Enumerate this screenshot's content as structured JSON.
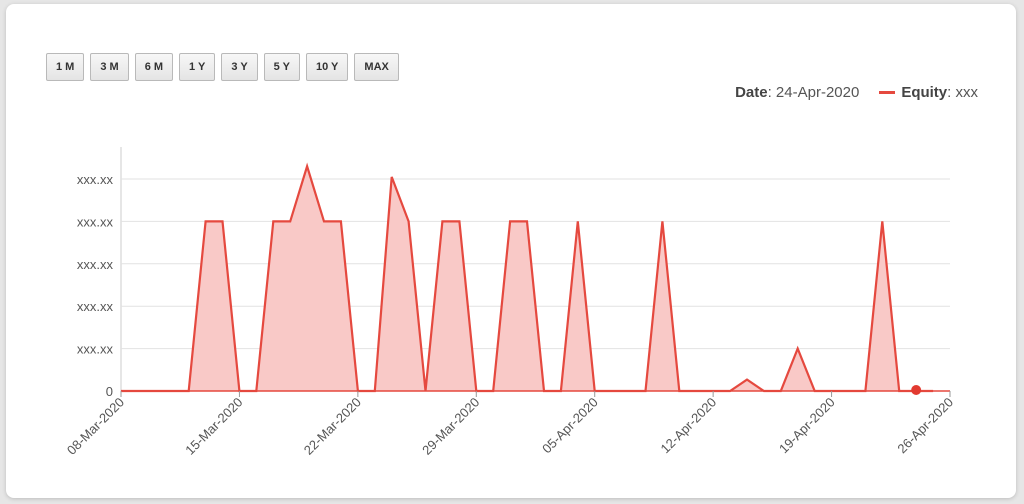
{
  "range_buttons": [
    {
      "label": "1 M"
    },
    {
      "label": "3 M"
    },
    {
      "label": "6 M"
    },
    {
      "label": "1 Y"
    },
    {
      "label": "3 Y"
    },
    {
      "label": "5 Y"
    },
    {
      "label": "10 Y"
    },
    {
      "label": "MAX"
    }
  ],
  "tooltip": {
    "date_label": "Date",
    "date_value": "24-Apr-2020",
    "series_label": "Equity",
    "series_value": "xxx"
  },
  "colors": {
    "line": "#e5493f",
    "fill": "#f9c9c7",
    "grid": "#e2e2e2",
    "text": "#555555"
  },
  "chart_data": {
    "type": "area",
    "title": "",
    "xlabel": "",
    "ylabel": "",
    "ylim": [
      0,
      5.4
    ],
    "y_ticks": [
      {
        "value": 0,
        "label": "0"
      },
      {
        "value": 1,
        "label": "xxx.xx"
      },
      {
        "value": 2,
        "label": "xxx.xx"
      },
      {
        "value": 3,
        "label": "xxx.xx"
      },
      {
        "value": 4,
        "label": "xxx.xx"
      },
      {
        "value": 5,
        "label": "xxx.xx"
      }
    ],
    "x_range": [
      "2020-03-08",
      "2020-04-26"
    ],
    "x_ticks": [
      {
        "date": "2020-03-08",
        "label": "08-Mar-2020"
      },
      {
        "date": "2020-03-15",
        "label": "15-Mar-2020"
      },
      {
        "date": "2020-03-22",
        "label": "22-Mar-2020"
      },
      {
        "date": "2020-03-29",
        "label": "29-Mar-2020"
      },
      {
        "date": "2020-04-05",
        "label": "05-Apr-2020"
      },
      {
        "date": "2020-04-12",
        "label": "12-Apr-2020"
      },
      {
        "date": "2020-04-19",
        "label": "19-Apr-2020"
      },
      {
        "date": "2020-04-26",
        "label": "26-Apr-2020"
      }
    ],
    "series": [
      {
        "points": [
          [
            "2020-03-08",
            0
          ],
          [
            "2020-03-09",
            0
          ],
          [
            "2020-03-10",
            0
          ],
          [
            "2020-03-11",
            0
          ],
          [
            "2020-03-12",
            0
          ],
          [
            "2020-03-13",
            4
          ],
          [
            "2020-03-14",
            4
          ],
          [
            "2020-03-15",
            0
          ],
          [
            "2020-03-16",
            0
          ],
          [
            "2020-03-17",
            4
          ],
          [
            "2020-03-18",
            4
          ],
          [
            "2020-03-19",
            5.3
          ],
          [
            "2020-03-20",
            4
          ],
          [
            "2020-03-21",
            4
          ],
          [
            "2020-03-22",
            0
          ],
          [
            "2020-03-23",
            0
          ],
          [
            "2020-03-24",
            5.05
          ],
          [
            "2020-03-25",
            4
          ],
          [
            "2020-03-26",
            0
          ],
          [
            "2020-03-27",
            4
          ],
          [
            "2020-03-28",
            4
          ],
          [
            "2020-03-29",
            0
          ],
          [
            "2020-03-30",
            0
          ],
          [
            "2020-03-31",
            4
          ],
          [
            "2020-04-01",
            4
          ],
          [
            "2020-04-02",
            0
          ],
          [
            "2020-04-03",
            0
          ],
          [
            "2020-04-04",
            4
          ],
          [
            "2020-04-05",
            0
          ],
          [
            "2020-04-06",
            0
          ],
          [
            "2020-04-07",
            0
          ],
          [
            "2020-04-08",
            0
          ],
          [
            "2020-04-09",
            4
          ],
          [
            "2020-04-10",
            0
          ],
          [
            "2020-04-11",
            0
          ],
          [
            "2020-04-12",
            0
          ],
          [
            "2020-04-13",
            0
          ],
          [
            "2020-04-14",
            0.27
          ],
          [
            "2020-04-15",
            0
          ],
          [
            "2020-04-16",
            0
          ],
          [
            "2020-04-17",
            1
          ],
          [
            "2020-04-18",
            0
          ],
          [
            "2020-04-19",
            0
          ],
          [
            "2020-04-20",
            0
          ],
          [
            "2020-04-21",
            0
          ],
          [
            "2020-04-22",
            4
          ],
          [
            "2020-04-23",
            0
          ],
          [
            "2020-04-24",
            0
          ],
          [
            "2020-04-25",
            0
          ]
        ]
      }
    ],
    "highlighted_point": [
      "2020-04-24",
      0
    ],
    "legend_position": "top-right",
    "grid": true
  }
}
